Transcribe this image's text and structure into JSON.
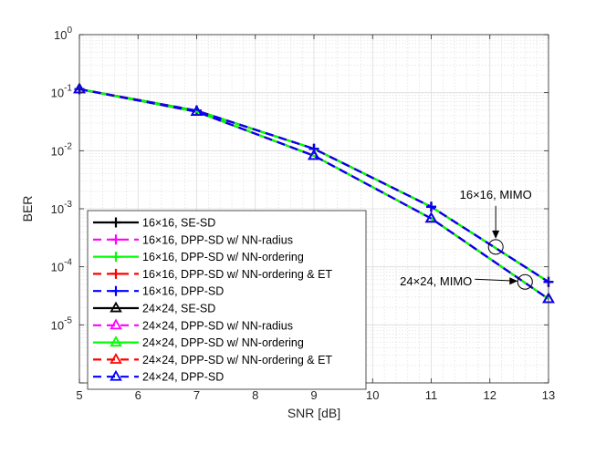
{
  "chart_data": {
    "type": "line",
    "xlabel": "SNR [dB]",
    "ylabel": "BER",
    "xlim": [
      5,
      13
    ],
    "ylim": [
      1e-06,
      1
    ],
    "yscale": "log",
    "grid": true,
    "minor_grid": true,
    "x_ticks": [
      5,
      6,
      7,
      8,
      9,
      10,
      11,
      12,
      13
    ],
    "x_tick_labels": [
      "5",
      "6",
      "7",
      "8",
      "9",
      "10",
      "11",
      "12",
      "13"
    ],
    "y_ticks": [
      {
        "base": "10",
        "exp": "0",
        "value": 1
      },
      {
        "base": "10",
        "exp": "-1",
        "value": 0.1
      },
      {
        "base": "10",
        "exp": "-2",
        "value": 0.01
      },
      {
        "base": "10",
        "exp": "-3",
        "value": 0.001
      },
      {
        "base": "10",
        "exp": "-4",
        "value": 0.0001
      },
      {
        "base": "10",
        "exp": "-5",
        "value": 1e-05
      }
    ],
    "x": [
      5,
      7,
      9,
      11,
      13
    ],
    "legend_location": "lower-left",
    "series": [
      {
        "name": "16×16, SE-SD",
        "color": "#000000",
        "line": "solid",
        "marker": "plus",
        "values": [
          0.115,
          0.049,
          0.0108,
          0.00108,
          5.5e-05
        ]
      },
      {
        "name": "16×16, DPP-SD w/ NN-radius",
        "color": "#ff00ff",
        "line": "dashed",
        "marker": "plus",
        "values": [
          0.115,
          0.049,
          0.0108,
          0.00108,
          5.5e-05
        ]
      },
      {
        "name": "16×16, DPP-SD w/ NN-ordering",
        "color": "#00ff00",
        "line": "solid",
        "marker": "plus",
        "values": [
          0.115,
          0.049,
          0.0108,
          0.00108,
          5.5e-05
        ]
      },
      {
        "name": "16×16, DPP-SD w/ NN-ordering & ET",
        "color": "#ff0000",
        "line": "dashed",
        "marker": "plus",
        "values": [
          0.115,
          0.049,
          0.0108,
          0.00108,
          5.5e-05
        ]
      },
      {
        "name": "16×16, DPP-SD",
        "color": "#0000ff",
        "line": "dashed",
        "marker": "plus",
        "values": [
          0.115,
          0.049,
          0.0108,
          0.00108,
          5.5e-05
        ]
      },
      {
        "name": "24×24, SE-SD",
        "color": "#000000",
        "line": "solid",
        "marker": "triangle",
        "values": [
          0.115,
          0.047,
          0.0082,
          0.00068,
          2.8e-05
        ]
      },
      {
        "name": "24×24, DPP-SD w/ NN-radius",
        "color": "#ff00ff",
        "line": "dashed",
        "marker": "triangle",
        "values": [
          0.115,
          0.047,
          0.0082,
          0.00068,
          2.8e-05
        ]
      },
      {
        "name": "24×24, DPP-SD w/ NN-ordering",
        "color": "#00ff00",
        "line": "solid",
        "marker": "triangle",
        "values": [
          0.115,
          0.047,
          0.0082,
          0.00068,
          2.8e-05
        ]
      },
      {
        "name": "24×24, DPP-SD w/ NN-ordering & ET",
        "color": "#ff0000",
        "line": "dashed",
        "marker": "triangle",
        "values": [
          0.115,
          0.047,
          0.0082,
          0.00068,
          2.8e-05
        ]
      },
      {
        "name": "24×24, DPP-SD",
        "color": "#0000ff",
        "line": "dashed",
        "marker": "triangle",
        "values": [
          0.115,
          0.047,
          0.0082,
          0.00068,
          2.8e-05
        ]
      }
    ],
    "annotations": [
      {
        "text": "16×16, MIMO",
        "circle_at": {
          "x": 12.1,
          "y": 0.00022
        },
        "label_anchor": "above"
      },
      {
        "text": "24×24, MIMO",
        "circle_at": {
          "x": 12.6,
          "y": 5.5e-05
        },
        "label_anchor": "left"
      }
    ]
  }
}
